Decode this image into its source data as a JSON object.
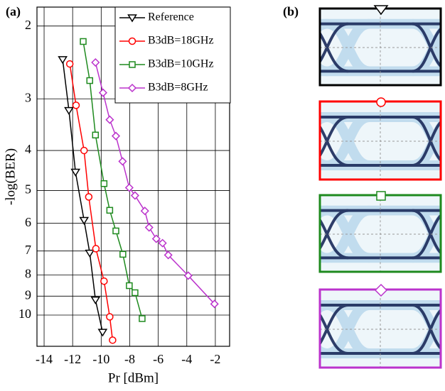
{
  "chart_data": {
    "type": "line",
    "panel_label": "(a)",
    "xlabel": "Pr [dBm]",
    "ylabel": "-log(BER)",
    "xlim": [
      -14.5,
      -1
    ],
    "xticks": [
      -14,
      -12,
      -10,
      -8,
      -6,
      -4,
      -2
    ],
    "ylim": [
      1.8,
      11.9
    ],
    "yticks": [
      2,
      3,
      4,
      5,
      6,
      7,
      8,
      9,
      10
    ],
    "y_log": true,
    "y_inverted": true,
    "grid": true,
    "series": [
      {
        "name": "Reference",
        "color": "#000000",
        "marker": "triangle-down",
        "x": [
          -12.7,
          -12.26,
          -11.8,
          -11.2,
          -10.8,
          -10.4,
          -9.9
        ],
        "values": [
          2.41,
          3.2,
          4.51,
          5.9,
          7.08,
          9.19,
          11.0
        ]
      },
      {
        "name": "B3dB=18GHz",
        "color": "#ff0000",
        "marker": "circle",
        "x": [
          -12.2,
          -11.76,
          -11.2,
          -10.87,
          -10.37,
          -9.8,
          -9.4,
          -9.2
        ],
        "values": [
          2.47,
          3.11,
          4.0,
          5.18,
          6.91,
          8.28,
          10.1,
          11.5
        ]
      },
      {
        "name": "B3dB=10GHz",
        "color": "#1e8a1e",
        "marker": "square",
        "x": [
          -11.26,
          -10.8,
          -10.4,
          -9.8,
          -9.4,
          -8.97,
          -8.48,
          -8.03,
          -7.63,
          -7.13
        ],
        "values": [
          2.18,
          2.71,
          3.67,
          4.81,
          5.58,
          6.26,
          7.13,
          8.49,
          8.83,
          10.2
        ]
      },
      {
        "name": "B3dB=8GHz",
        "color": "#bb33cc",
        "marker": "diamond",
        "x": [
          -10.4,
          -9.87,
          -9.4,
          -8.97,
          -8.5,
          -8.03,
          -7.63,
          -6.94,
          -6.64,
          -6.14,
          -5.7,
          -5.3,
          -3.9,
          -2.06
        ],
        "values": [
          2.45,
          2.9,
          3.37,
          3.69,
          4.25,
          4.92,
          5.14,
          5.6,
          6.14,
          6.54,
          6.7,
          7.16,
          8.03,
          9.4
        ]
      }
    ]
  },
  "panel_b": {
    "label": "(b)"
  }
}
